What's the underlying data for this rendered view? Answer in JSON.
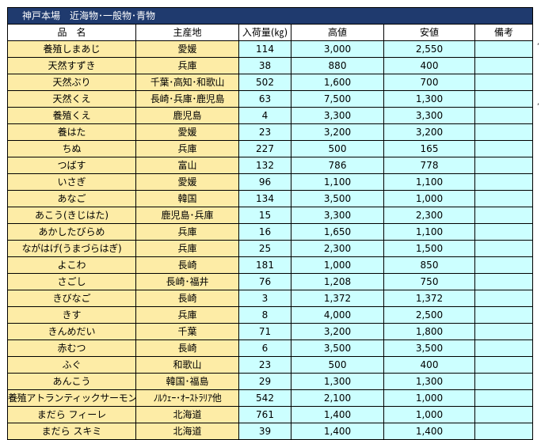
{
  "title": "神戸本場　近海物･一般物･青物",
  "headers": [
    "品　名",
    "主産地",
    "入荷量(㎏)",
    "高値",
    "安値",
    "備考"
  ],
  "rows": [
    {
      "name": "養殖しまあじ",
      "origin": "愛媛",
      "qty": "114",
      "high": "3,000",
      "low": "2,550",
      "note": ""
    },
    {
      "name": "天然すずき",
      "origin": "兵庫",
      "qty": "38",
      "high": "880",
      "low": "400",
      "note": ""
    },
    {
      "name": "天然ぶり",
      "origin": "千葉･高知･和歌山",
      "qty": "502",
      "high": "1,600",
      "low": "700",
      "note": ""
    },
    {
      "name": "天然くえ",
      "origin": "長崎･兵庫･鹿児島",
      "qty": "63",
      "high": "7,500",
      "low": "1,300",
      "note": ""
    },
    {
      "name": "養殖くえ",
      "origin": "鹿児島",
      "qty": "4",
      "high": "3,300",
      "low": "3,300",
      "note": ""
    },
    {
      "name": "養はた",
      "origin": "愛媛",
      "qty": "23",
      "high": "3,200",
      "low": "3,200",
      "note": ""
    },
    {
      "name": "ちぬ",
      "origin": "兵庫",
      "qty": "227",
      "high": "500",
      "low": "165",
      "note": ""
    },
    {
      "name": "つばす",
      "origin": "富山",
      "qty": "132",
      "high": "786",
      "low": "778",
      "note": ""
    },
    {
      "name": "いさぎ",
      "origin": "愛媛",
      "qty": "96",
      "high": "1,100",
      "low": "1,100",
      "note": ""
    },
    {
      "name": "あなご",
      "origin": "韓国",
      "qty": "134",
      "high": "3,500",
      "low": "1,000",
      "note": ""
    },
    {
      "name": "あこう(きじはた)",
      "origin": "鹿児島･兵庫",
      "qty": "15",
      "high": "3,300",
      "low": "2,300",
      "note": ""
    },
    {
      "name": "あかしたびらめ",
      "origin": "兵庫",
      "qty": "16",
      "high": "1,650",
      "low": "1,100",
      "note": ""
    },
    {
      "name": "ながはげ(うまづらはぎ)",
      "origin": "兵庫",
      "qty": "25",
      "high": "2,300",
      "low": "1,500",
      "note": ""
    },
    {
      "name": "よこわ",
      "origin": "長崎",
      "qty": "181",
      "high": "1,000",
      "low": "850",
      "note": ""
    },
    {
      "name": "さごし",
      "origin": "長崎･福井",
      "qty": "76",
      "high": "1,208",
      "low": "750",
      "note": ""
    },
    {
      "name": "きびなご",
      "origin": "長崎",
      "qty": "3",
      "high": "1,372",
      "low": "1,372",
      "note": ""
    },
    {
      "name": "きす",
      "origin": "兵庫",
      "qty": "8",
      "high": "4,000",
      "low": "2,500",
      "note": ""
    },
    {
      "name": "きんめだい",
      "origin": "千葉",
      "qty": "71",
      "high": "3,200",
      "low": "1,800",
      "note": ""
    },
    {
      "name": "赤むつ",
      "origin": "長崎",
      "qty": "6",
      "high": "3,500",
      "low": "3,500",
      "note": ""
    },
    {
      "name": "ふぐ",
      "origin": "和歌山",
      "qty": "23",
      "high": "500",
      "low": "400",
      "note": ""
    },
    {
      "name": "あんこう",
      "origin": "韓国･福島",
      "qty": "29",
      "high": "1,300",
      "low": "1,300",
      "note": ""
    },
    {
      "name": "養殖アトランティックサーモン",
      "origin": "ﾉﾙｳｪｰ･ｵｰｽﾄﾗﾘｱ他",
      "qty": "542",
      "high": "2,100",
      "low": "1,000",
      "note": ""
    },
    {
      "name": "まだら フィーレ",
      "origin": "北海道",
      "qty": "761",
      "high": "1,400",
      "low": "1,000",
      "note": ""
    },
    {
      "name": "まだら スキミ",
      "origin": "北海道",
      "qty": "39",
      "high": "1,400",
      "low": "1,400",
      "note": ""
    }
  ],
  "colors": {
    "title_bg": "#1f3a6e",
    "name_bg": "#fdeca6",
    "value_bg": "#ccffff"
  }
}
